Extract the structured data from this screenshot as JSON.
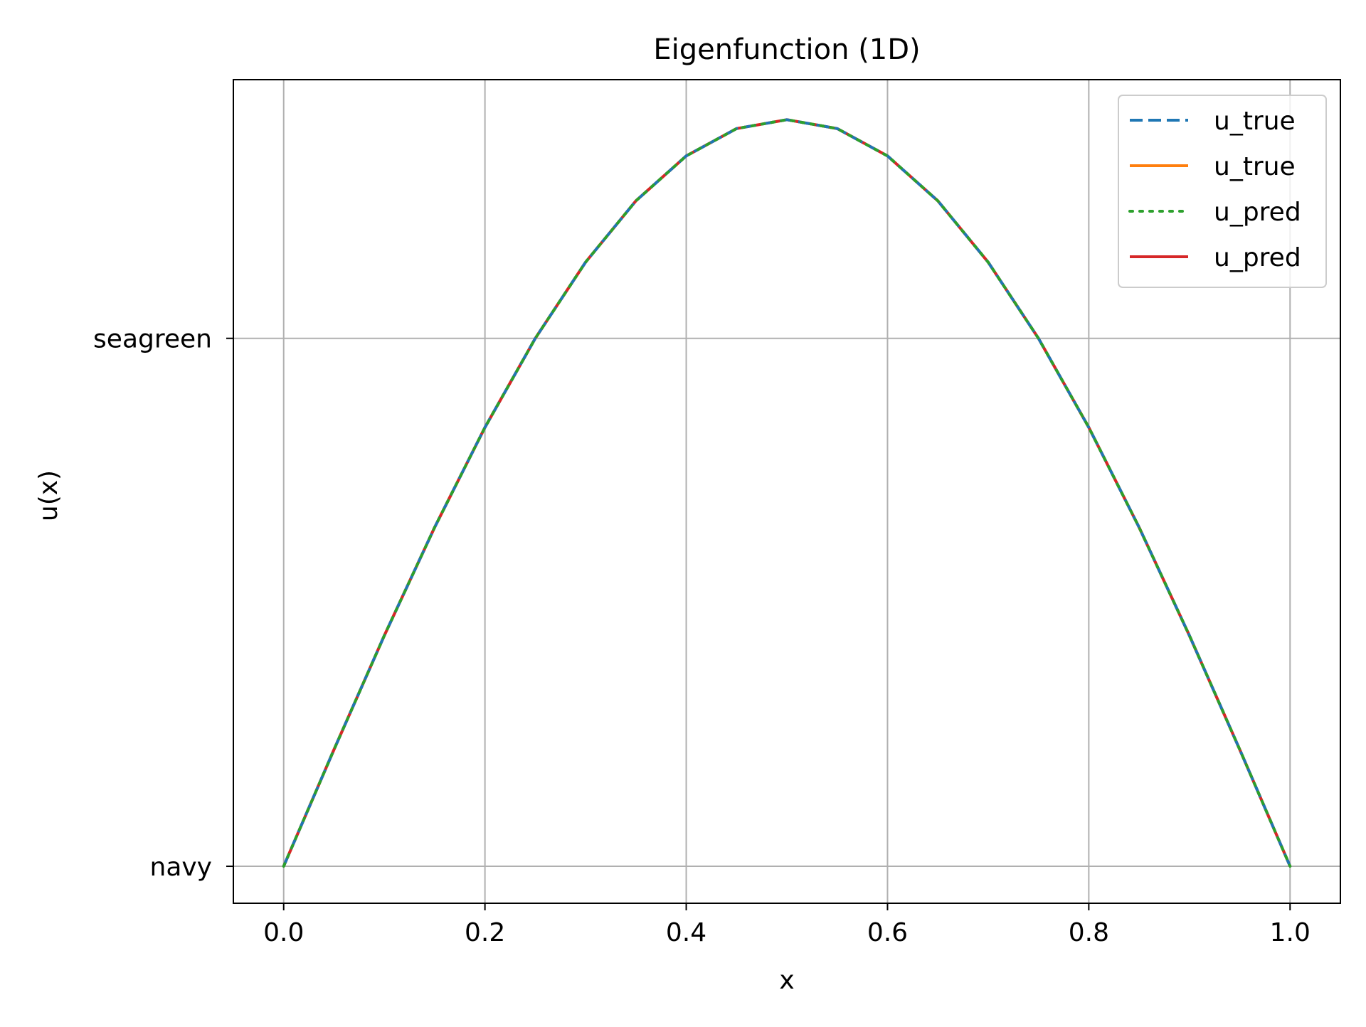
{
  "chart_data": {
    "type": "line",
    "title": "Eigenfunction (1D)",
    "xlabel": "x",
    "ylabel": "u(x)",
    "xlim": [
      -0.05,
      1.05
    ],
    "ylim": [
      -0.07,
      1.49
    ],
    "x_ticks": [
      {
        "value": 0.0,
        "label": "0.0"
      },
      {
        "value": 0.2,
        "label": "0.2"
      },
      {
        "value": 0.4,
        "label": "0.4"
      },
      {
        "value": 0.6,
        "label": "0.6"
      },
      {
        "value": 0.8,
        "label": "0.8"
      },
      {
        "value": 1.0,
        "label": "1.0"
      }
    ],
    "y_ticks": [
      {
        "value": 0.0,
        "label": "navy"
      },
      {
        "value": 1.0,
        "label": "seagreen"
      }
    ],
    "grid": true,
    "legend_position": "top-right",
    "x": [
      0.0,
      0.05,
      0.1,
      0.15,
      0.2,
      0.25,
      0.3,
      0.35,
      0.4,
      0.45,
      0.5,
      0.55,
      0.6,
      0.65,
      0.7,
      0.75,
      0.8,
      0.85,
      0.9,
      0.95,
      1.0
    ],
    "series": [
      {
        "name": "u_true",
        "color": "#1f77b4",
        "style": "dashed",
        "values": [
          0.0,
          0.2212,
          0.437,
          0.642,
          0.8312,
          1.0,
          1.1443,
          1.2604,
          1.3454,
          1.3973,
          1.4142,
          1.3973,
          1.3454,
          1.2604,
          1.1443,
          1.0,
          0.8312,
          0.642,
          0.437,
          0.2212,
          0.0
        ]
      },
      {
        "name": "u_true",
        "color": "#ff7f0e",
        "style": "solid",
        "values": [
          0.0,
          0.2212,
          0.437,
          0.642,
          0.8312,
          1.0,
          1.1443,
          1.2604,
          1.3454,
          1.3973,
          1.4142,
          1.3973,
          1.3454,
          1.2604,
          1.1443,
          1.0,
          0.8312,
          0.642,
          0.437,
          0.2212,
          0.0
        ]
      },
      {
        "name": "u_pred",
        "color": "#2ca02c",
        "style": "dotted",
        "values": [
          0.0,
          0.2212,
          0.437,
          0.642,
          0.8312,
          1.0,
          1.1443,
          1.2604,
          1.3454,
          1.3973,
          1.4142,
          1.3973,
          1.3454,
          1.2604,
          1.1443,
          1.0,
          0.8312,
          0.642,
          0.437,
          0.2212,
          0.0
        ]
      },
      {
        "name": "u_pred",
        "color": "#d62728",
        "style": "solid",
        "values": [
          0.0,
          0.2212,
          0.437,
          0.642,
          0.8312,
          1.0,
          1.1443,
          1.2604,
          1.3454,
          1.3973,
          1.4142,
          1.3973,
          1.3454,
          1.2604,
          1.1443,
          1.0,
          0.8312,
          0.642,
          0.437,
          0.2212,
          0.0
        ]
      }
    ]
  }
}
